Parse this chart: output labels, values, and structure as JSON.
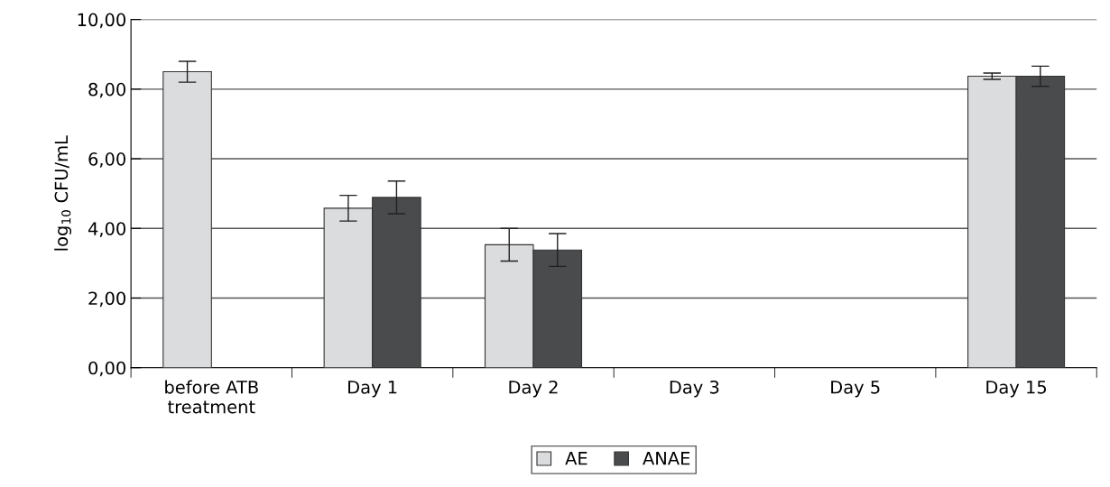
{
  "chart_data": {
    "type": "bar",
    "ylabel": "log$_{10}$ CFU/mL",
    "categories": [
      "before ATB\ntreatment",
      "Day 1",
      "Day 2",
      "Day 3",
      "Day 5",
      "Day 15"
    ],
    "series": [
      {
        "name": "AE",
        "color": "#dbdcde",
        "values": [
          8.5,
          4.58,
          3.53,
          null,
          null,
          8.37
        ],
        "errors": [
          0.3,
          0.37,
          0.47,
          null,
          null,
          0.09
        ]
      },
      {
        "name": "ANAE",
        "color": "#4a4b4d",
        "values": [
          null,
          4.89,
          3.38,
          null,
          null,
          8.37
        ],
        "errors": [
          null,
          0.47,
          0.47,
          null,
          null,
          0.29
        ]
      }
    ],
    "ylim": [
      0,
      10
    ],
    "yticks": [
      {
        "value": 0,
        "label": "0,00"
      },
      {
        "value": 2,
        "label": "2,00"
      },
      {
        "value": 4,
        "label": "4,00"
      },
      {
        "value": 6,
        "label": "6,00"
      },
      {
        "value": 8,
        "label": "8,00"
      },
      {
        "value": 10,
        "label": "10,00"
      }
    ],
    "grid": "y",
    "legend": "bottom"
  }
}
